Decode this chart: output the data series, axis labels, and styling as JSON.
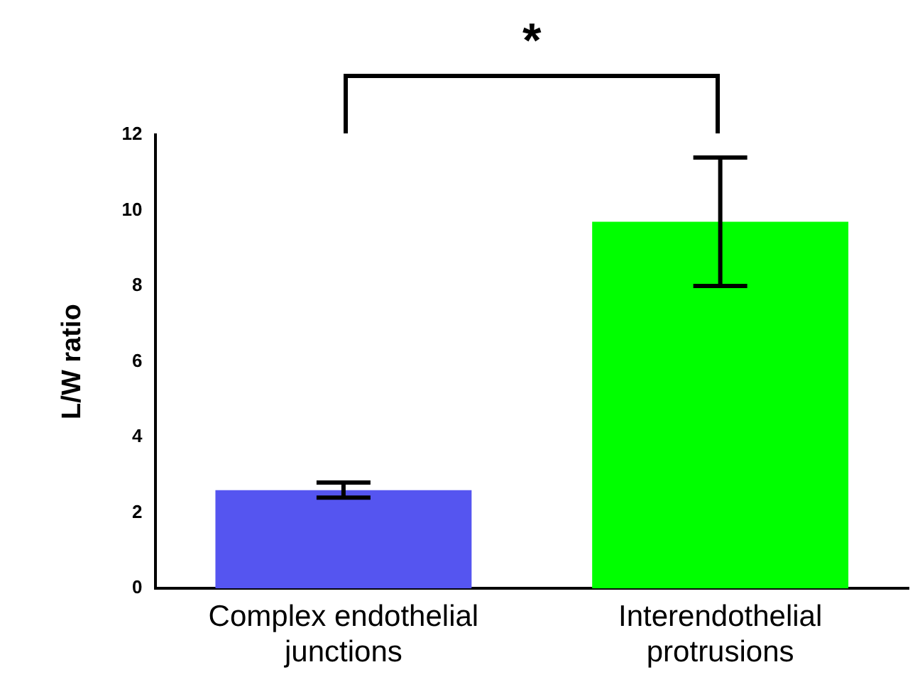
{
  "chart_data": {
    "type": "bar",
    "ylabel": "L/W ratio",
    "categories": [
      "Complex endothelial junctions",
      "Interendothelial protrusions"
    ],
    "values": [
      2.6,
      9.7
    ],
    "errors": [
      0.2,
      1.7
    ],
    "colors": [
      "#5555f0",
      "#00ff00"
    ],
    "ylim": [
      0,
      12
    ],
    "yticks": [
      0,
      2,
      4,
      6,
      8,
      10,
      12
    ],
    "grid": false,
    "legend": false,
    "annotations": [
      "*"
    ]
  }
}
